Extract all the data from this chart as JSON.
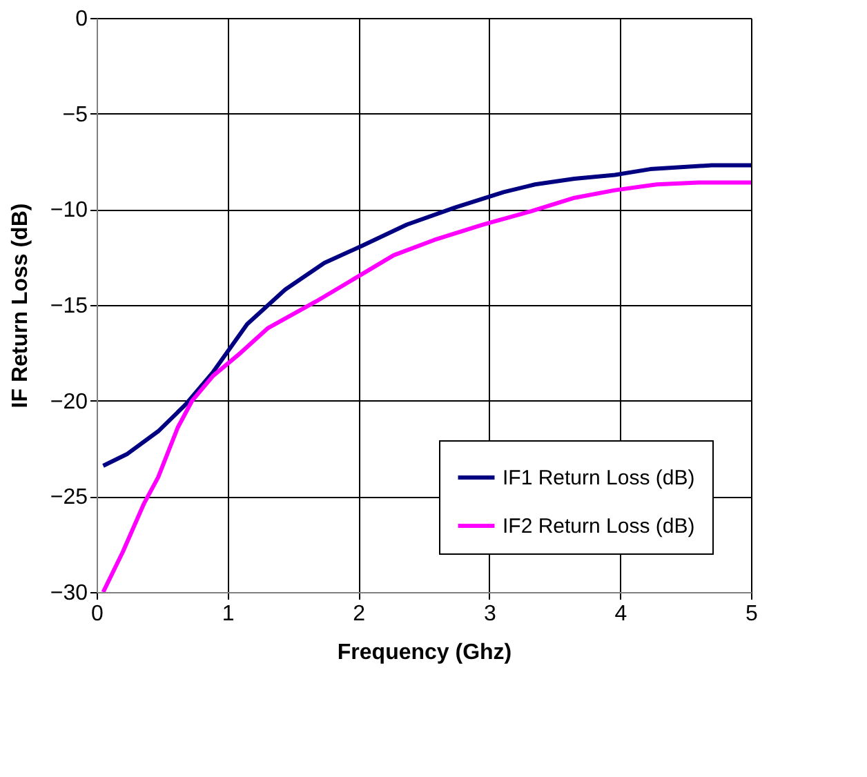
{
  "chart_data": {
    "type": "line",
    "xlabel": "Frequency (Ghz)",
    "ylabel": "IF Return Loss (dB)",
    "xlim": [
      0,
      5
    ],
    "xticks": [
      0,
      1,
      2,
      3,
      4,
      5
    ],
    "ylim": [
      -30,
      0
    ],
    "yticks": [
      -30,
      -25,
      -20,
      -15,
      -10,
      -5,
      0
    ],
    "grid": true,
    "legend": "bottom right",
    "line_style": "solid",
    "marker": "none",
    "series": [
      {
        "name": "IF1 Return Loss (dB)",
        "color": "#000080",
        "x": [
          0.05,
          0.23,
          0.47,
          0.68,
          0.89,
          1.15,
          1.44,
          1.74,
          2.03,
          2.37,
          2.74,
          3.11,
          3.35,
          3.65,
          3.96,
          4.23,
          4.7,
          5.0
        ],
        "values": [
          -23.4,
          -22.8,
          -21.6,
          -20.2,
          -18.5,
          -16.0,
          -14.2,
          -12.8,
          -11.9,
          -10.8,
          -9.9,
          -9.1,
          -8.7,
          -8.4,
          -8.2,
          -7.9,
          -7.7,
          -7.7
        ]
      },
      {
        "name": "IF2 Return Loss (dB)",
        "color": "#ff00ff",
        "x": [
          0.05,
          0.2,
          0.36,
          0.47,
          0.62,
          0.73,
          0.89,
          1.1,
          1.31,
          1.68,
          2.0,
          2.27,
          2.58,
          2.95,
          3.32,
          3.65,
          3.96,
          4.28,
          4.6,
          5.0
        ],
        "values": [
          -30.0,
          -27.9,
          -25.4,
          -24.0,
          -21.4,
          -20.0,
          -18.7,
          -17.5,
          -16.2,
          -14.8,
          -13.5,
          -12.4,
          -11.6,
          -10.8,
          -10.1,
          -9.4,
          -9.0,
          -8.7,
          -8.6,
          -8.6
        ]
      }
    ]
  }
}
